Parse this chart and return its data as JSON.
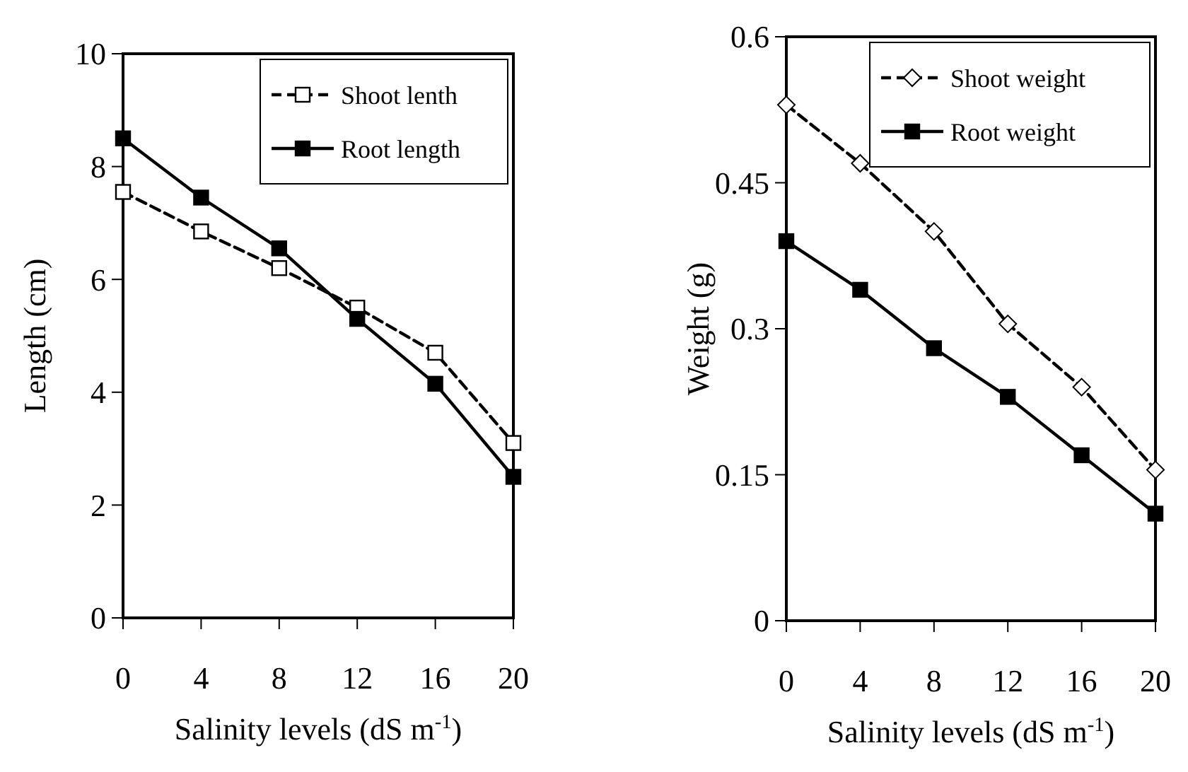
{
  "chart_data": [
    {
      "type": "line",
      "xlabel": "Salinity levels (dS m$^{-1}$)",
      "ylabel": "Length (cm)",
      "x": [
        0,
        4,
        8,
        12,
        16,
        20
      ],
      "xlim": [
        0,
        20
      ],
      "xticks": [
        0,
        4,
        8,
        12,
        16,
        20
      ],
      "ylim": [
        0,
        10
      ],
      "yticks": [
        0,
        2,
        4,
        6,
        8,
        10
      ],
      "legend": "top right",
      "series": [
        {
          "name": "Shoot lenth",
          "color": "#000000",
          "line_style": "dashed",
          "marker": "square",
          "values": [
            7.55,
            6.85,
            6.2,
            5.5,
            4.7,
            3.1
          ]
        },
        {
          "name": "Root length",
          "color": "#000000",
          "line_style": "solid",
          "marker": "square",
          "values": [
            8.5,
            7.45,
            6.55,
            5.3,
            4.15,
            2.5
          ]
        }
      ]
    },
    {
      "type": "line",
      "xlabel": "Salinity levels (dS m$^{-1}$)",
      "ylabel": "Weight  (g)",
      "x": [
        0,
        4,
        8,
        12,
        16,
        20
      ],
      "xlim": [
        0,
        20
      ],
      "xticks": [
        0,
        4,
        8,
        12,
        16,
        20
      ],
      "ylim": [
        0,
        0.6
      ],
      "yticks": [
        0,
        0.15,
        0.3,
        0.45,
        0.6
      ],
      "legend": "top right",
      "series": [
        {
          "name": "Shoot weight",
          "color": "#000000",
          "line_style": "dashed",
          "marker": "diamond",
          "values": [
            0.53,
            0.47,
            0.4,
            0.305,
            0.24,
            0.155
          ]
        },
        {
          "name": "Root weight",
          "color": "#000000",
          "line_style": "solid",
          "marker": "square",
          "values": [
            0.39,
            0.34,
            0.28,
            0.23,
            0.17,
            0.11
          ]
        }
      ]
    }
  ]
}
